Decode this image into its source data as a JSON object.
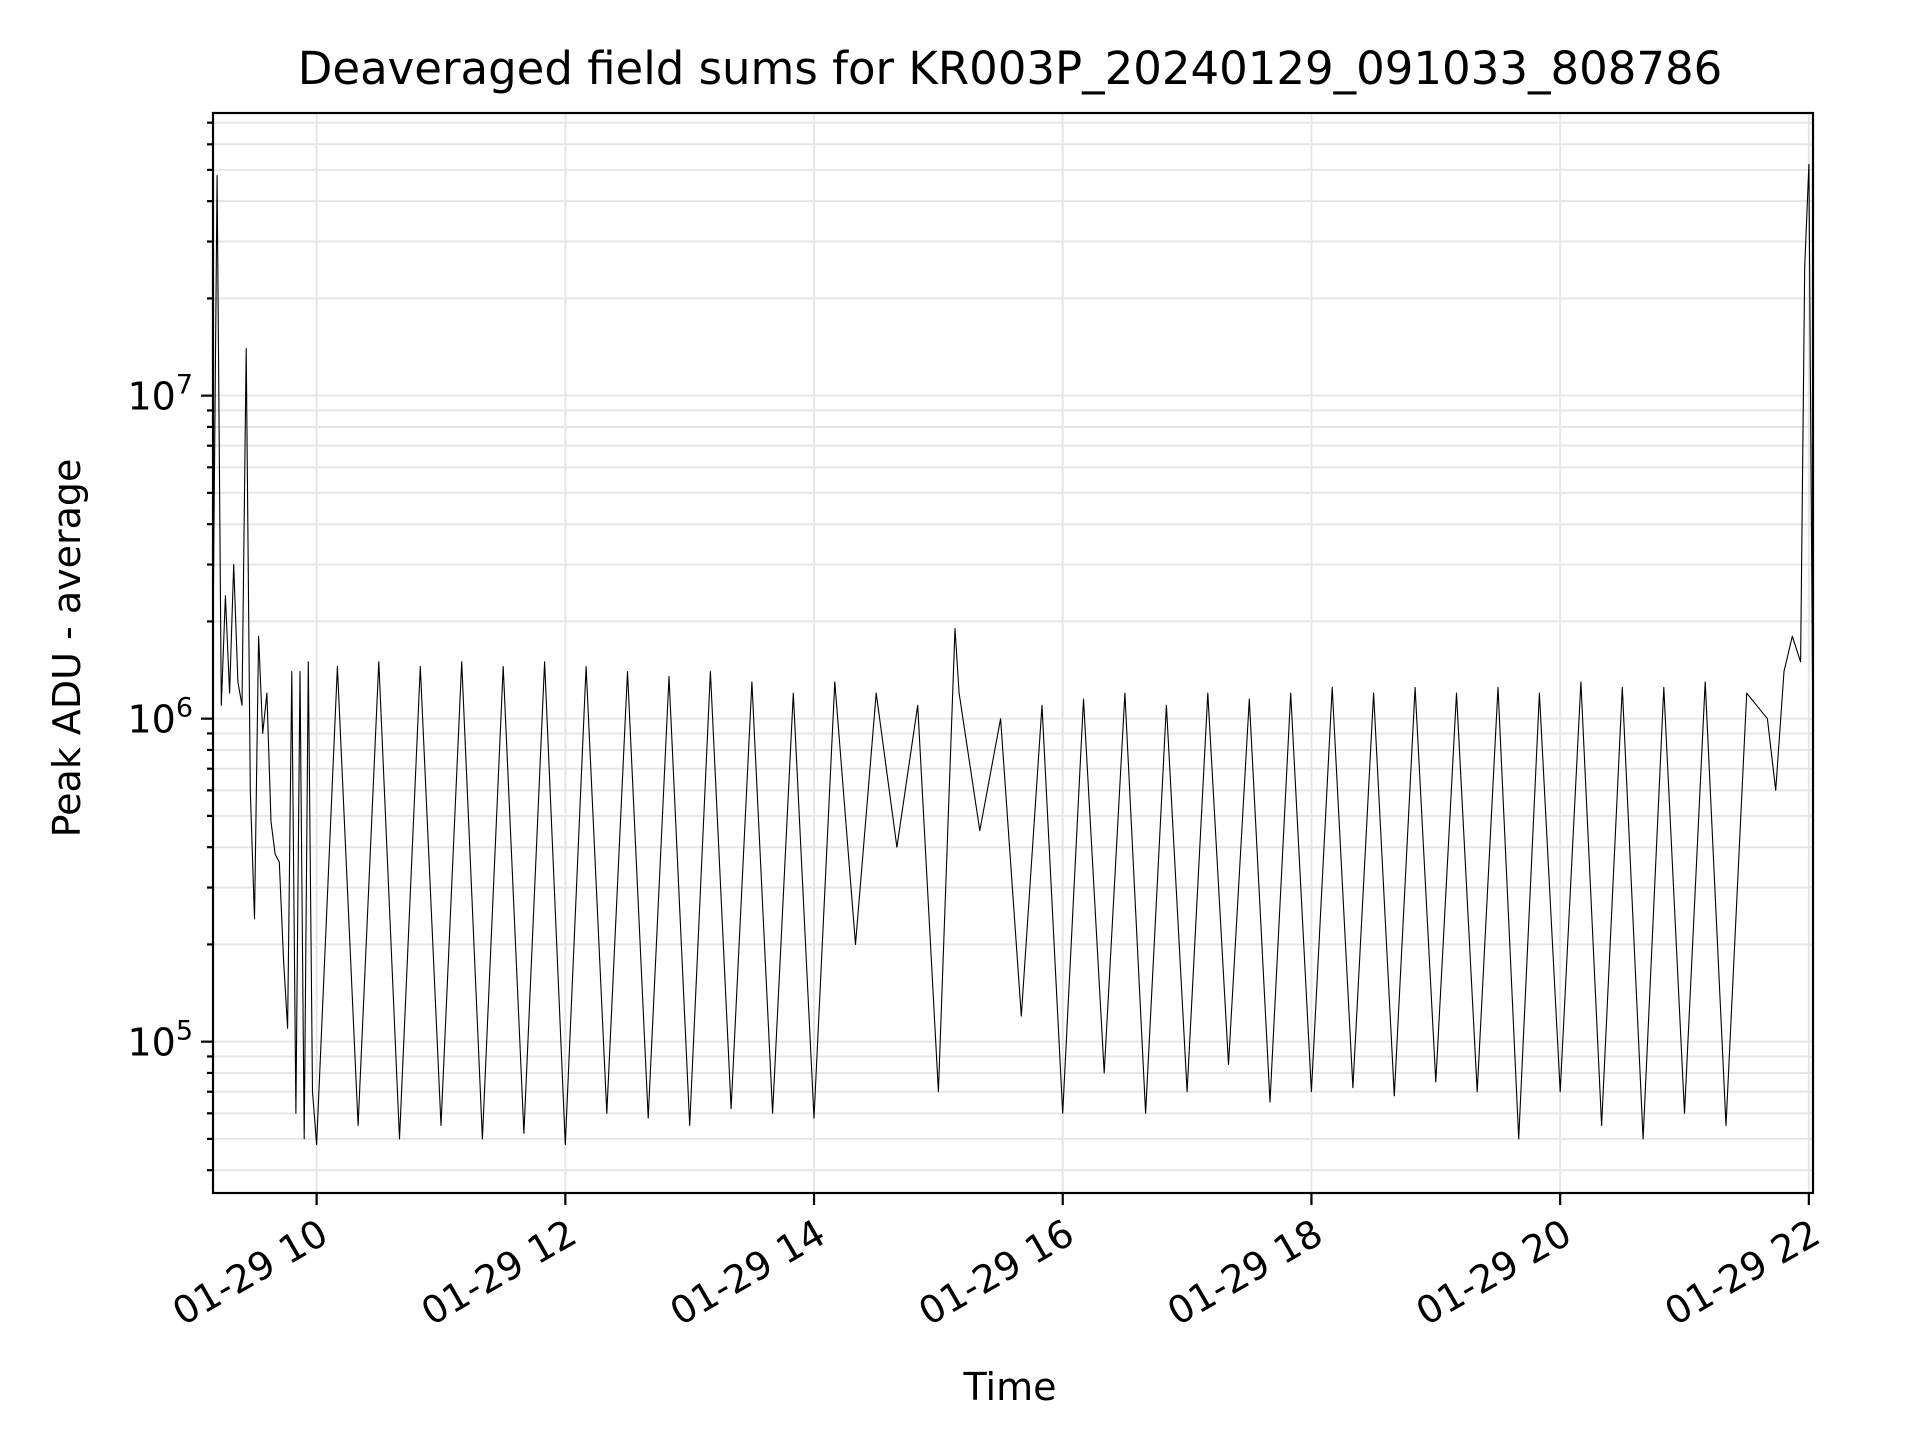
{
  "chart_data": {
    "type": "line",
    "title": "Deaveraged field sums for KR003P_20240129_091033_808786",
    "xlabel": "Time",
    "ylabel": "Peak ADU - average",
    "yscale": "log",
    "grid": "on",
    "legend": "none",
    "xlim": [
      "2024-01-29 09:10",
      "2024-01-29 22:02"
    ],
    "ylim": [
      34000,
      75000000
    ],
    "x_ticks": [
      "01-29 10",
      "01-29 12",
      "01-29 14",
      "01-29 16",
      "01-29 18",
      "01-29 20",
      "01-29 22"
    ],
    "y_ticks": [
      {
        "base": "10",
        "exp": "5",
        "value": 100000
      },
      {
        "base": "10",
        "exp": "6",
        "value": 1000000
      },
      {
        "base": "10",
        "exp": "7",
        "value": 10000000
      }
    ],
    "line_color": "#000000",
    "series": [
      {
        "x": [
          "2024-01-29 09:10",
          "2024-01-29 09:12",
          "2024-01-29 09:14",
          "2024-01-29 09:16",
          "2024-01-29 09:18",
          "2024-01-29 09:20",
          "2024-01-29 09:22",
          "2024-01-29 09:24",
          "2024-01-29 09:26",
          "2024-01-29 09:28",
          "2024-01-29 09:30",
          "2024-01-29 09:32",
          "2024-01-29 09:34",
          "2024-01-29 09:36",
          "2024-01-29 09:38",
          "2024-01-29 09:40",
          "2024-01-29 09:42",
          "2024-01-29 09:44",
          "2024-01-29 09:46",
          "2024-01-29 09:48",
          "2024-01-29 09:50",
          "2024-01-29 09:52",
          "2024-01-29 09:54",
          "2024-01-29 09:56",
          "2024-01-29 09:58",
          "2024-01-29 10:00",
          "2024-01-29 10:10",
          "2024-01-29 10:20",
          "2024-01-29 10:30",
          "2024-01-29 10:40",
          "2024-01-29 10:50",
          "2024-01-29 11:00",
          "2024-01-29 11:10",
          "2024-01-29 11:20",
          "2024-01-29 11:30",
          "2024-01-29 11:40",
          "2024-01-29 11:50",
          "2024-01-29 12:00",
          "2024-01-29 12:10",
          "2024-01-29 12:20",
          "2024-01-29 12:30",
          "2024-01-29 12:40",
          "2024-01-29 12:50",
          "2024-01-29 13:00",
          "2024-01-29 13:10",
          "2024-01-29 13:20",
          "2024-01-29 13:30",
          "2024-01-29 13:40",
          "2024-01-29 13:50",
          "2024-01-29 14:00",
          "2024-01-29 14:10",
          "2024-01-29 14:20",
          "2024-01-29 14:30",
          "2024-01-29 14:40",
          "2024-01-29 14:50",
          "2024-01-29 15:00",
          "2024-01-29 15:08",
          "2024-01-29 15:10",
          "2024-01-29 15:20",
          "2024-01-29 15:30",
          "2024-01-29 15:40",
          "2024-01-29 15:50",
          "2024-01-29 16:00",
          "2024-01-29 16:10",
          "2024-01-29 16:20",
          "2024-01-29 16:30",
          "2024-01-29 16:40",
          "2024-01-29 16:50",
          "2024-01-29 17:00",
          "2024-01-29 17:10",
          "2024-01-29 17:20",
          "2024-01-29 17:30",
          "2024-01-29 17:40",
          "2024-01-29 17:50",
          "2024-01-29 18:00",
          "2024-01-29 18:10",
          "2024-01-29 18:20",
          "2024-01-29 18:30",
          "2024-01-29 18:40",
          "2024-01-29 18:50",
          "2024-01-29 19:00",
          "2024-01-29 19:10",
          "2024-01-29 19:20",
          "2024-01-29 19:30",
          "2024-01-29 19:40",
          "2024-01-29 19:50",
          "2024-01-29 20:00",
          "2024-01-29 20:10",
          "2024-01-29 20:20",
          "2024-01-29 20:30",
          "2024-01-29 20:40",
          "2024-01-29 20:50",
          "2024-01-29 21:00",
          "2024-01-29 21:10",
          "2024-01-29 21:20",
          "2024-01-29 21:30",
          "2024-01-29 21:40",
          "2024-01-29 21:44",
          "2024-01-29 21:48",
          "2024-01-29 21:52",
          "2024-01-29 21:56",
          "2024-01-29 21:58",
          "2024-01-29 22:00",
          "2024-01-29 22:02"
        ],
        "values": [
          1800000,
          48000000,
          1100000,
          2400000,
          1200000,
          3000000,
          1300000,
          1100000,
          14000000,
          600000,
          240000,
          1800000,
          900000,
          1200000,
          480000,
          380000,
          360000,
          180000,
          110000,
          1400000,
          60000,
          1400000,
          50000,
          1500000,
          70000,
          48000,
          1450000,
          55000,
          1500000,
          50000,
          1450000,
          55000,
          1500000,
          50000,
          1450000,
          52000,
          1500000,
          48000,
          1450000,
          60000,
          1400000,
          58000,
          1350000,
          55000,
          1400000,
          62000,
          1300000,
          60000,
          1200000,
          58000,
          1300000,
          200000,
          1200000,
          400000,
          1100000,
          70000,
          1900000,
          1200000,
          450000,
          1000000,
          120000,
          1100000,
          60000,
          1150000,
          80000,
          1200000,
          60000,
          1100000,
          70000,
          1200000,
          85000,
          1150000,
          65000,
          1200000,
          70000,
          1250000,
          72000,
          1200000,
          68000,
          1250000,
          75000,
          1200000,
          70000,
          1250000,
          50000,
          1200000,
          70000,
          1300000,
          55000,
          1250000,
          50000,
          1250000,
          60000,
          1300000,
          55000,
          1200000,
          1000000,
          600000,
          1400000,
          1800000,
          1500000,
          25000000,
          52000000,
          800000
        ]
      }
    ]
  }
}
